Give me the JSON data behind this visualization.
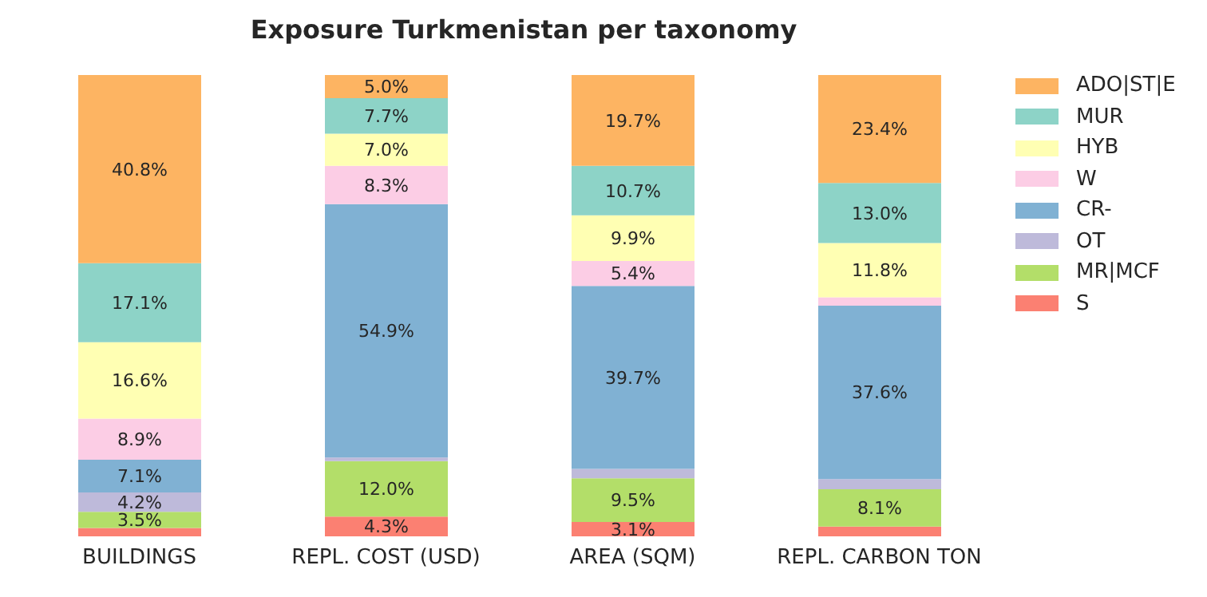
{
  "chart_data": {
    "type": "bar",
    "title": "Exposure Turkmenistan per taxonomy",
    "stacked": true,
    "legend": "top right",
    "categories": [
      "BUILDINGS",
      "REPL. COST (USD)",
      "AREA (SQM)",
      "REPL. CARBON TON"
    ],
    "series": [
      {
        "name": "S",
        "color": "#fb8072",
        "values": [
          1.8,
          4.3,
          3.1,
          2.1
        ],
        "value_labels": [
          null,
          "4.3%",
          "3.1%",
          null
        ]
      },
      {
        "name": "MR|MCF",
        "color": "#b3de69",
        "values": [
          3.5,
          12.0,
          9.5,
          8.1
        ],
        "value_labels": [
          "3.5%",
          "12.0%",
          "9.5%",
          "8.1%"
        ]
      },
      {
        "name": "OT",
        "color": "#bebada",
        "values": [
          4.2,
          0.8,
          2.0,
          2.2
        ],
        "value_labels": [
          "4.2%",
          null,
          null,
          null
        ]
      },
      {
        "name": "CR-",
        "color": "#80b1d3",
        "values": [
          7.1,
          54.9,
          39.7,
          37.6
        ],
        "value_labels": [
          "7.1%",
          "54.9%",
          "39.7%",
          "37.6%"
        ]
      },
      {
        "name": "W",
        "color": "#fccde5",
        "values": [
          8.9,
          8.3,
          5.4,
          1.8
        ],
        "value_labels": [
          "8.9%",
          "8.3%",
          "5.4%",
          null
        ]
      },
      {
        "name": "HYB",
        "color": "#ffffb3",
        "values": [
          16.6,
          7.0,
          9.9,
          11.8
        ],
        "value_labels": [
          "16.6%",
          "7.0%",
          "9.9%",
          "11.8%"
        ]
      },
      {
        "name": "MUR",
        "color": "#8dd3c7",
        "values": [
          17.1,
          7.7,
          10.7,
          13.0
        ],
        "value_labels": [
          "17.1%",
          "7.7%",
          "10.7%",
          "13.0%"
        ]
      },
      {
        "name": "ADO|ST|E",
        "color": "#fdb462",
        "values": [
          40.8,
          5.0,
          19.7,
          23.4
        ],
        "value_labels": [
          "40.8%",
          "5.0%",
          "19.7%",
          "23.4%"
        ]
      }
    ]
  }
}
